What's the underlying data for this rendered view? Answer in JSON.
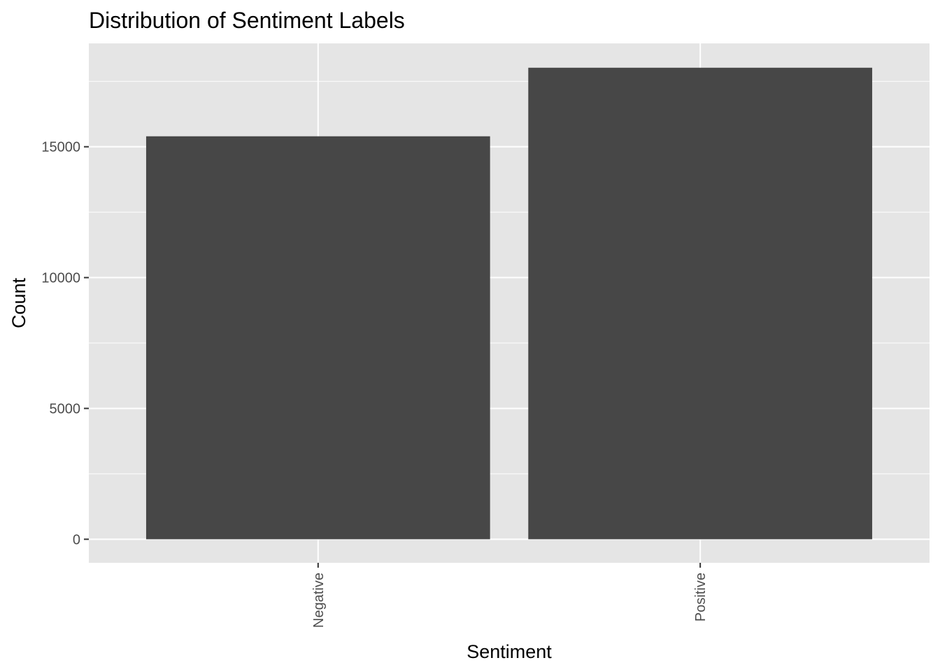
{
  "chart_data": {
    "type": "bar",
    "title": "Distribution of Sentiment Labels",
    "xlabel": "Sentiment",
    "ylabel": "Count",
    "categories": [
      "Negative",
      "Positive"
    ],
    "values": [
      15400,
      18020
    ],
    "ylim": [
      -900,
      18950
    ],
    "yticks": [
      0,
      5000,
      10000,
      15000
    ],
    "yticks_minor": [
      2500,
      7500,
      12500,
      17500
    ],
    "x_tick_rotation": -90,
    "grid": true,
    "legend": "none",
    "colors": {
      "bar": "#474747",
      "panel": "#e5e5e5",
      "grid": "#ffffff",
      "tick": "#333333"
    }
  }
}
